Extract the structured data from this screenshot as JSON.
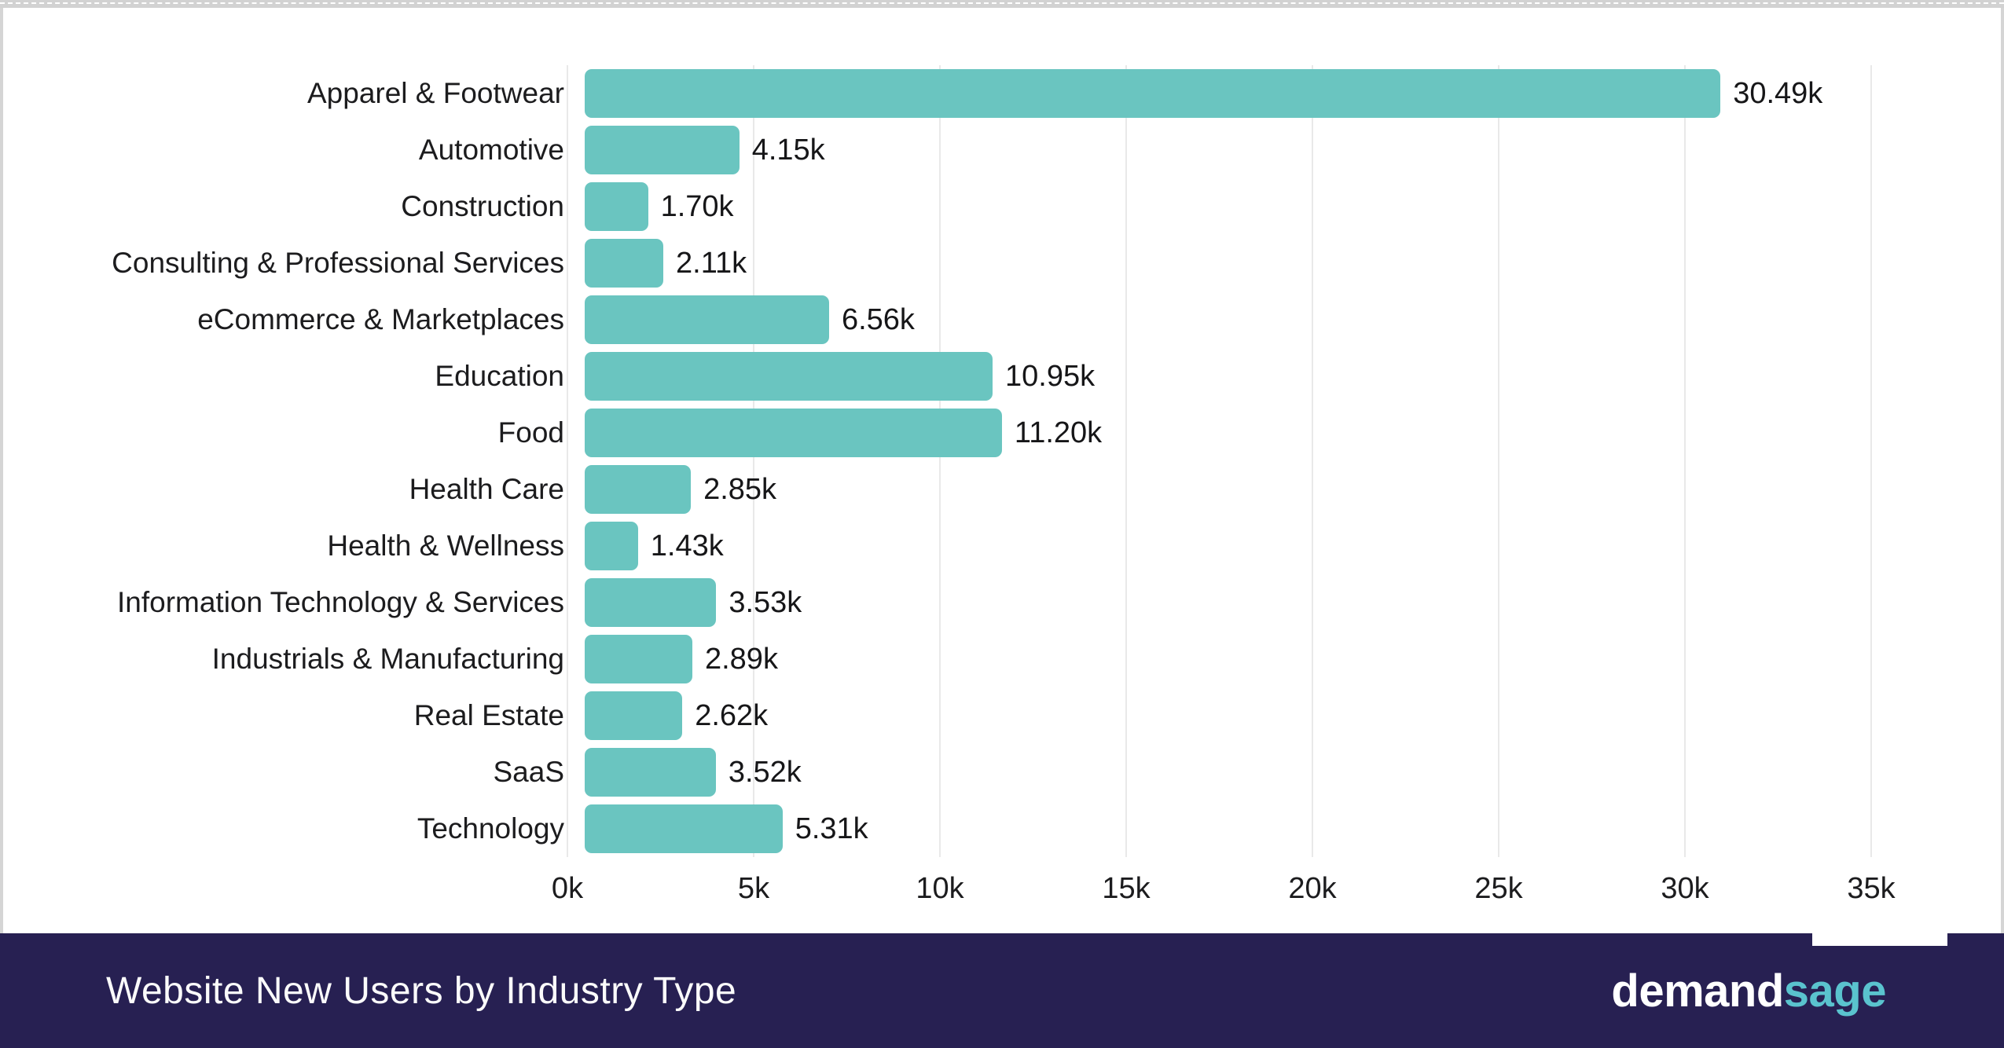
{
  "chart_data": {
    "type": "bar",
    "orientation": "horizontal",
    "title": "Website New Users by Industry Type",
    "categories": [
      "Apparel & Footwear",
      "Automotive",
      "Construction",
      "Consulting & Professional Services",
      "eCommerce & Marketplaces",
      "Education",
      "Food",
      "Health Care",
      "Health & Wellness",
      "Information Technology & Services",
      "Industrials & Manufacturing",
      "Real Estate",
      "SaaS",
      "Technology"
    ],
    "values": [
      30490,
      4150,
      1700,
      2110,
      6560,
      10950,
      11200,
      2850,
      1430,
      3530,
      2890,
      2620,
      3520,
      5310
    ],
    "value_labels": [
      "30.49k",
      "4.15k",
      "1.70k",
      "2.11k",
      "6.56k",
      "10.95k",
      "11.20k",
      "2.85k",
      "1.43k",
      "3.53k",
      "2.89k",
      "2.62k",
      "3.52k",
      "5.31k"
    ],
    "xlabel": "",
    "ylabel": "",
    "xlim": [
      0,
      35000
    ],
    "xticks": [
      0,
      5000,
      10000,
      15000,
      20000,
      25000,
      30000,
      35000
    ],
    "xtick_labels": [
      "0k",
      "5k",
      "10k",
      "15k",
      "20k",
      "25k",
      "30k",
      "35k"
    ],
    "grid": true,
    "legend": false
  },
  "footer": {
    "title": "Website New Users by Industry Type",
    "brand_demand": "demand",
    "brand_sage": "sage"
  },
  "colors": {
    "bar": "#6AC5C0",
    "footer_background": "#272052",
    "brand_sage": "#5AC3CE",
    "gridline": "#e9e9e9",
    "text": "#1c1c1e",
    "frame": "#d2d2d2"
  }
}
